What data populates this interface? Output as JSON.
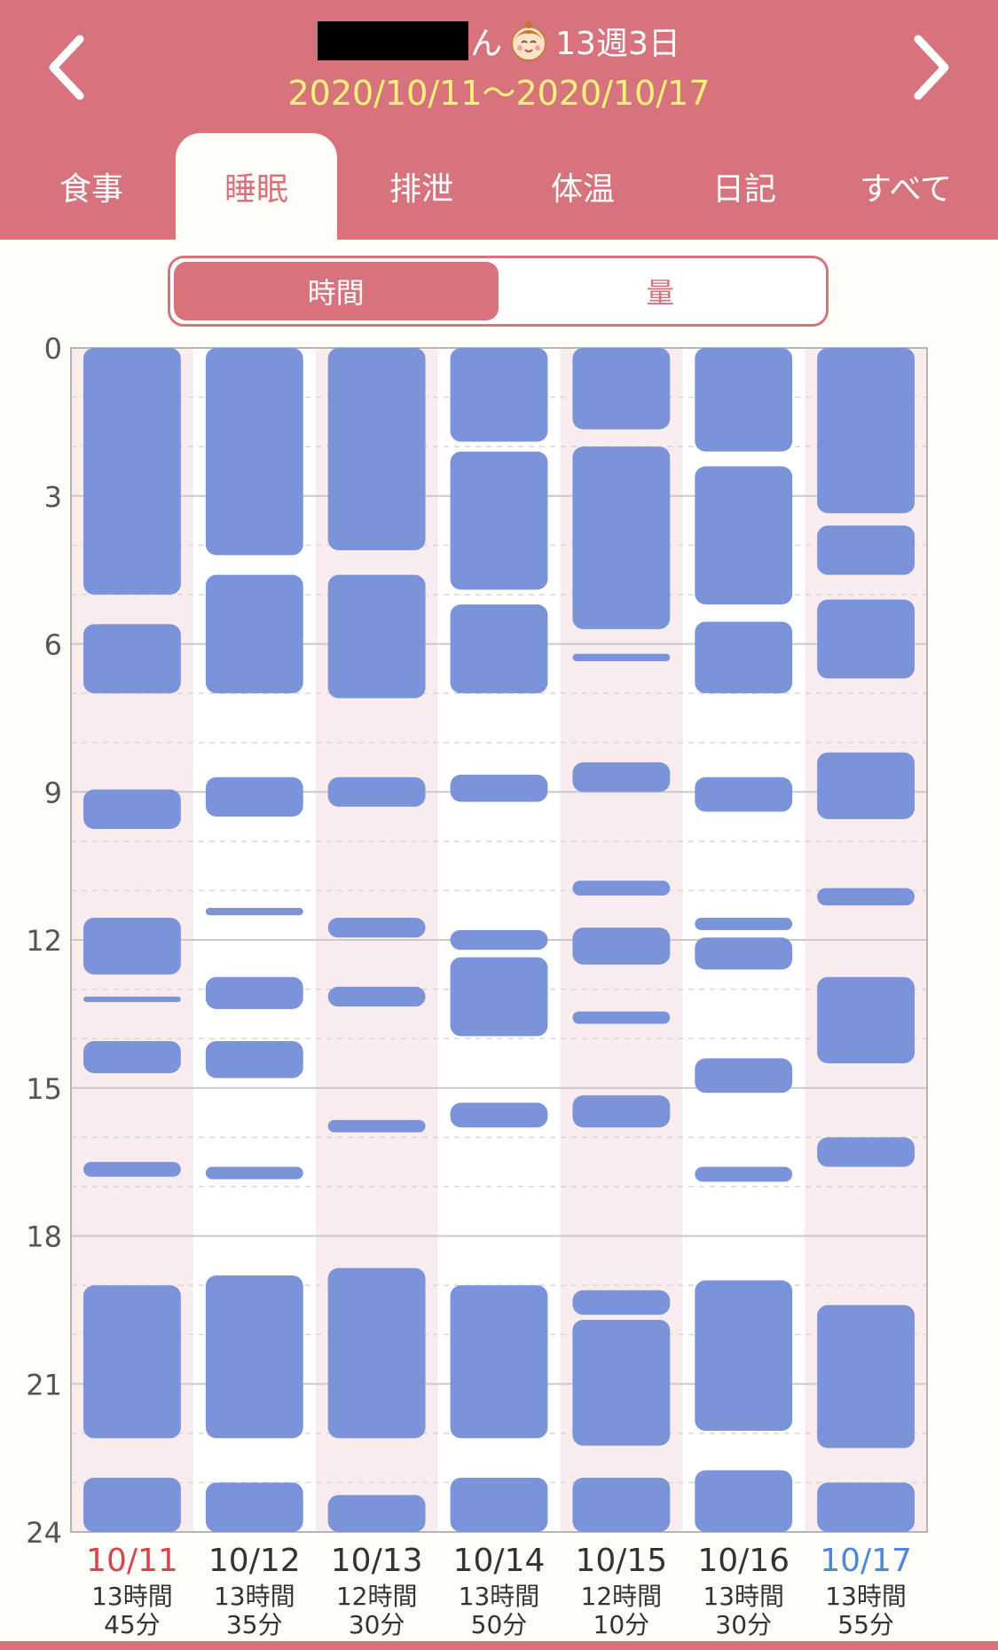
{
  "header": {
    "name_suffix": "ん",
    "age": "13週3日",
    "date_range": "2020/10/11〜2020/10/17",
    "baby_icon": "baby-face-icon",
    "prev_icon": "chevron-left-icon",
    "next_icon": "chevron-right-icon"
  },
  "tabs": [
    {
      "label": "食事",
      "active": false
    },
    {
      "label": "睡眠",
      "active": true
    },
    {
      "label": "排泄",
      "active": false
    },
    {
      "label": "体温",
      "active": false
    },
    {
      "label": "日記",
      "active": false
    },
    {
      "label": "すべて",
      "active": false
    }
  ],
  "segment": {
    "time_label": "時間",
    "amount_label": "量",
    "selected": "時間"
  },
  "colors": {
    "header": "#d6737c",
    "date_text": "#fff27a",
    "sleep_bar": "#7b93d9",
    "shade_column": "#f8ecee",
    "sunday": "#d9434f",
    "saturday": "#4f86d6"
  },
  "chart_data": {
    "type": "bar",
    "orientation": "vertical-timeline",
    "y_unit": "hour",
    "ylim": [
      0,
      24
    ],
    "y_ticks": [
      "0",
      "3",
      "6",
      "9",
      "12",
      "15",
      "18",
      "21",
      "24"
    ],
    "grid": true,
    "days": [
      {
        "date": "10/11",
        "total": [
          "13時間",
          "45分"
        ],
        "color_role": "sunday",
        "sleeps": [
          [
            0,
            5.0
          ],
          [
            5.6,
            7.0
          ],
          [
            8.95,
            9.75
          ],
          [
            11.55,
            12.7
          ],
          [
            13.15,
            13.25
          ],
          [
            14.05,
            14.7
          ],
          [
            16.5,
            16.8
          ],
          [
            19.0,
            22.1
          ],
          [
            22.9,
            24
          ]
        ]
      },
      {
        "date": "10/12",
        "total": [
          "13時間",
          "35分"
        ],
        "color_role": "weekday",
        "sleeps": [
          [
            0,
            4.2
          ],
          [
            4.6,
            7.0
          ],
          [
            8.7,
            9.5
          ],
          [
            11.35,
            11.5
          ],
          [
            12.75,
            13.4
          ],
          [
            14.05,
            14.8
          ],
          [
            16.6,
            16.85
          ],
          [
            18.8,
            22.1
          ],
          [
            23.0,
            24
          ]
        ]
      },
      {
        "date": "10/13",
        "total": [
          "12時間",
          "30分"
        ],
        "color_role": "weekday",
        "sleeps": [
          [
            0,
            4.1
          ],
          [
            4.6,
            7.1
          ],
          [
            8.7,
            9.3
          ],
          [
            11.55,
            11.95
          ],
          [
            12.95,
            13.35
          ],
          [
            15.65,
            15.9
          ],
          [
            18.65,
            22.1
          ],
          [
            23.25,
            24
          ]
        ]
      },
      {
        "date": "10/14",
        "total": [
          "13時間",
          "50分"
        ],
        "color_role": "weekday",
        "sleeps": [
          [
            0,
            1.9
          ],
          [
            2.1,
            4.9
          ],
          [
            5.2,
            7.0
          ],
          [
            8.65,
            9.2
          ],
          [
            11.8,
            12.2
          ],
          [
            12.35,
            13.95
          ],
          [
            15.3,
            15.8
          ],
          [
            19.0,
            22.1
          ],
          [
            22.9,
            24
          ]
        ]
      },
      {
        "date": "10/15",
        "total": [
          "12時間",
          "10分"
        ],
        "color_role": "weekday",
        "sleeps": [
          [
            0,
            1.65
          ],
          [
            2.0,
            5.7
          ],
          [
            6.2,
            6.35
          ],
          [
            8.4,
            9.0
          ],
          [
            10.8,
            11.1
          ],
          [
            11.75,
            12.5
          ],
          [
            13.45,
            13.7
          ],
          [
            15.15,
            15.8
          ],
          [
            19.1,
            19.6
          ],
          [
            19.7,
            22.25
          ],
          [
            22.9,
            24
          ]
        ]
      },
      {
        "date": "10/16",
        "total": [
          "13時間",
          "30分"
        ],
        "color_role": "weekday",
        "sleeps": [
          [
            0,
            2.1
          ],
          [
            2.4,
            5.2
          ],
          [
            5.55,
            7.0
          ],
          [
            8.7,
            9.4
          ],
          [
            11.55,
            11.8
          ],
          [
            11.95,
            12.6
          ],
          [
            14.4,
            15.1
          ],
          [
            16.6,
            16.9
          ],
          [
            18.9,
            21.95
          ],
          [
            22.75,
            24
          ]
        ]
      },
      {
        "date": "10/17",
        "total": [
          "13時間",
          "55分"
        ],
        "color_role": "saturday",
        "sleeps": [
          [
            0,
            3.35
          ],
          [
            3.6,
            4.6
          ],
          [
            5.1,
            6.7
          ],
          [
            8.2,
            9.55
          ],
          [
            10.95,
            11.3
          ],
          [
            12.75,
            14.5
          ],
          [
            16.0,
            16.6
          ],
          [
            19.4,
            22.3
          ],
          [
            23.0,
            24
          ]
        ]
      }
    ]
  }
}
